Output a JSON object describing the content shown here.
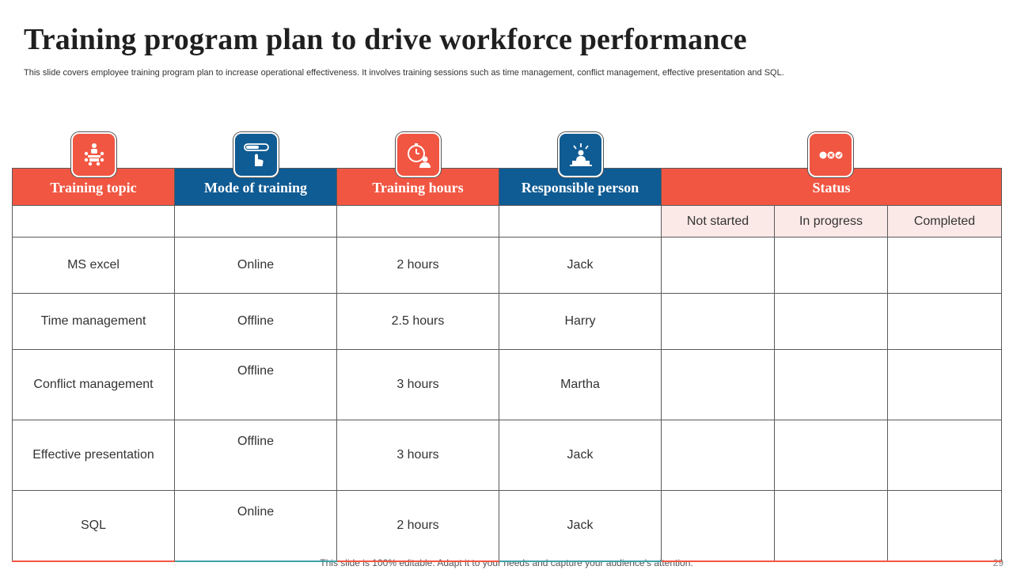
{
  "slide": {
    "title": "Training program plan to drive workforce performance",
    "subtitle": "This slide covers employee training program plan to increase operational effectiveness. It involves training sessions such as time management, conflict management, effective presentation and SQL.",
    "footer": "This slide is 100% editable. Adapt it to your needs and capture your audience’s attention.",
    "page_number": "29"
  },
  "colors": {
    "accent_red": "#f15642",
    "accent_blue": "#0f5b93",
    "status_tint": "#fbe9e7"
  },
  "icons": [
    "meeting-icon",
    "click-toggle-icon",
    "stopwatch-person-icon",
    "presenter-icon",
    "status-dots-icon"
  ],
  "table": {
    "headers": [
      "Training topic",
      "Mode of training",
      "Training hours",
      "Responsible person",
      "Status"
    ],
    "status_columns": [
      "Not started",
      "In progress",
      "Completed"
    ],
    "rows": [
      {
        "topic": "MS excel",
        "mode": "Online",
        "hours": "2 hours",
        "person": "Jack"
      },
      {
        "topic": "Time management",
        "mode": "Offline",
        "hours": "2.5 hours",
        "person": "Harry"
      },
      {
        "topic": "Conflict management",
        "mode": "Offline",
        "hours": "3 hours",
        "person": "Martha"
      },
      {
        "topic": "Effective presentation",
        "mode": "Offline",
        "hours": "3 hours",
        "person": "Jack"
      },
      {
        "topic": "SQL",
        "mode": "Online",
        "hours": "2 hours",
        "person": "Jack"
      }
    ]
  }
}
